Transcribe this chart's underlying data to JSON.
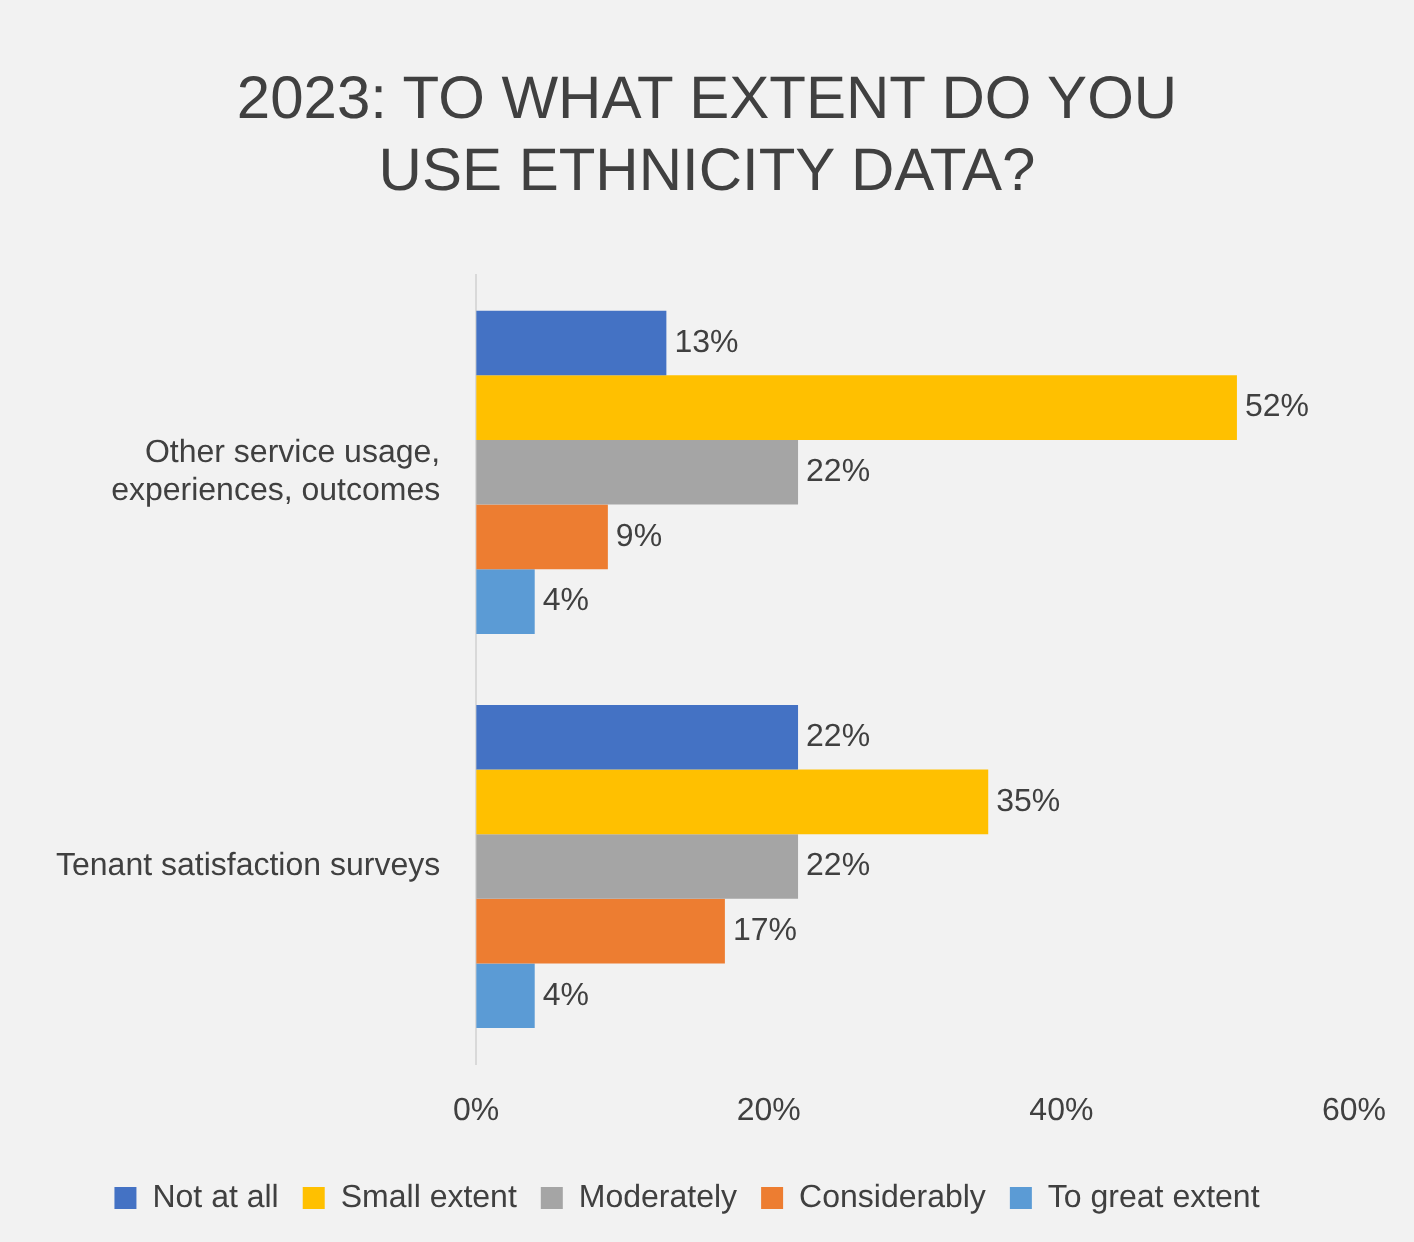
{
  "chart_data": {
    "type": "bar",
    "orientation": "horizontal",
    "title": "2023: TO WHAT EXTENT DO YOU USE ETHNICITY DATA?",
    "categories": [
      "Other service usage, experiences, outcomes",
      "Tenant satisfaction surveys"
    ],
    "series": [
      {
        "name": "Not at all",
        "color": "#4472c4",
        "values": [
          13,
          22
        ],
        "value_labels": [
          "13%",
          "22%"
        ]
      },
      {
        "name": "Small extent",
        "color": "#ffc000",
        "values": [
          52,
          35
        ],
        "value_labels": [
          "52%",
          "35%"
        ]
      },
      {
        "name": "Moderately",
        "color": "#a5a5a5",
        "values": [
          22,
          22
        ],
        "value_labels": [
          "22%",
          "22%"
        ]
      },
      {
        "name": "Considerably",
        "color": "#ed7d31",
        "values": [
          9,
          17
        ],
        "value_labels": [
          "9%",
          "17%"
        ]
      },
      {
        "name": "To great extent",
        "color": "#5b9bd5",
        "values": [
          4,
          4
        ],
        "value_labels": [
          "4%",
          "4%"
        ]
      }
    ],
    "xlim": [
      0,
      60
    ],
    "xticks": [
      {
        "value": 0,
        "label": "0%"
      },
      {
        "value": 20,
        "label": "20%"
      },
      {
        "value": 40,
        "label": "40%"
      },
      {
        "value": 60,
        "label": "60%"
      }
    ],
    "grid": false,
    "legend": "bottom"
  }
}
